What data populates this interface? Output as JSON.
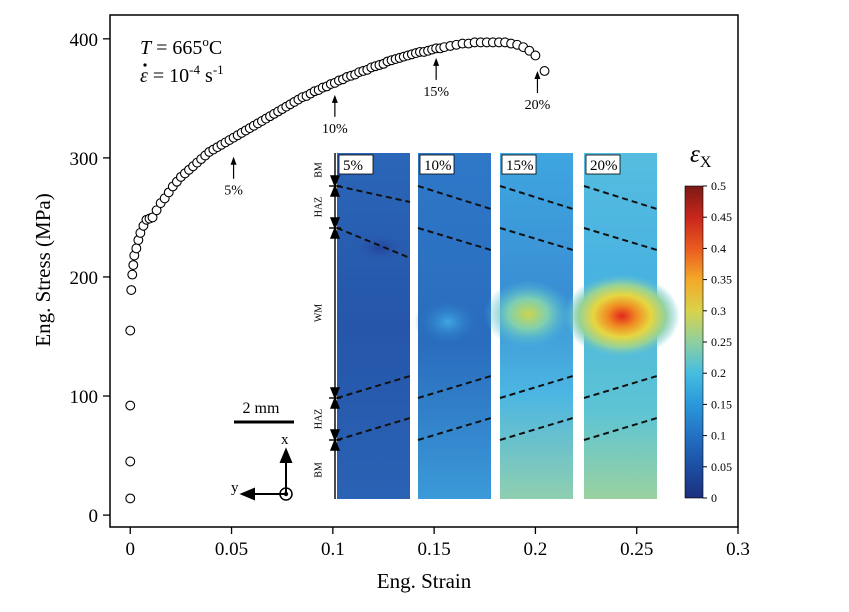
{
  "chart_data": {
    "type": "scatter",
    "xlabel": "Eng. Strain",
    "ylabel": "Eng. Stress (MPa)",
    "xlim": [
      -0.01,
      0.3
    ],
    "ylim": [
      -10,
      420
    ],
    "xticks": [
      0,
      0.05,
      0.1,
      0.15,
      0.2,
      0.25,
      0.3
    ],
    "xtick_labels": [
      "0",
      "0.05",
      "0.1",
      "0.15",
      "0.2",
      "0.25",
      "0.3"
    ],
    "yticks": [
      0,
      100,
      200,
      300,
      400
    ],
    "ytick_labels": [
      "0",
      "100",
      "200",
      "300",
      "400"
    ],
    "grid": false,
    "annotation": {
      "temp_var": "T",
      "temp_value": " = 665",
      "temp_sup": "o",
      "temp_unit": "C",
      "rate_var": "ε",
      "rate_eq": " = 10",
      "rate_sup": "-4",
      "rate_unit": " s",
      "rate_unit_sup": "-1"
    },
    "arrows": [
      {
        "label": "5%",
        "x": 0.051,
        "y": 306
      },
      {
        "label": "10%",
        "x": 0.101,
        "y": 358
      },
      {
        "label": "15%",
        "x": 0.151,
        "y": 389
      },
      {
        "label": "20%",
        "x": 0.201,
        "y": 378
      }
    ],
    "x": [
      0,
      0,
      0,
      0,
      0.0005,
      0.001,
      0.0015,
      0.002,
      0.003,
      0.004,
      0.005,
      0.0065,
      0.008,
      0.0095,
      0.011,
      0.013,
      0.015,
      0.017,
      0.019,
      0.021,
      0.023,
      0.025,
      0.027,
      0.029,
      0.031,
      0.033,
      0.035,
      0.037,
      0.039,
      0.041,
      0.043,
      0.045,
      0.047,
      0.049,
      0.051,
      0.053,
      0.055,
      0.057,
      0.059,
      0.061,
      0.063,
      0.065,
      0.067,
      0.069,
      0.071,
      0.073,
      0.075,
      0.077,
      0.079,
      0.081,
      0.083,
      0.085,
      0.087,
      0.089,
      0.091,
      0.093,
      0.095,
      0.097,
      0.099,
      0.101,
      0.103,
      0.105,
      0.107,
      0.109,
      0.111,
      0.113,
      0.115,
      0.117,
      0.119,
      0.121,
      0.123,
      0.125,
      0.127,
      0.129,
      0.131,
      0.133,
      0.135,
      0.137,
      0.139,
      0.141,
      0.143,
      0.145,
      0.147,
      0.149,
      0.151,
      0.153,
      0.155,
      0.158,
      0.161,
      0.164,
      0.167,
      0.17,
      0.173,
      0.176,
      0.179,
      0.182,
      0.185,
      0.188,
      0.191,
      0.194,
      0.197,
      0.2,
      0.2045
    ],
    "y": [
      14,
      45,
      92,
      155,
      189,
      202,
      210,
      218,
      224,
      231,
      237,
      243,
      248,
      249,
      250,
      256,
      262,
      266,
      271,
      276,
      280,
      284,
      287,
      290,
      293,
      296,
      299,
      302,
      305,
      307,
      309,
      311,
      313,
      315,
      317,
      319,
      321,
      323,
      325,
      327,
      329,
      331,
      333,
      335,
      337,
      339,
      341,
      343,
      345,
      347,
      349,
      351,
      352,
      354,
      356,
      357,
      359,
      360,
      362,
      363,
      365,
      366,
      368,
      369,
      370,
      372,
      373,
      374,
      376,
      377,
      378,
      379,
      381,
      382,
      383,
      384,
      385,
      386,
      387,
      388,
      389,
      389,
      390,
      391,
      392,
      392,
      393,
      394,
      395,
      396,
      396,
      397,
      397,
      397,
      397,
      397,
      397,
      396,
      395,
      393,
      390,
      386,
      373
    ],
    "scale_bar_label": "2 mm",
    "axis_x_label": "x",
    "axis_y_label": "y",
    "zone_labels": [
      "BM",
      "HAZ",
      "WM",
      "HAZ",
      "BM"
    ],
    "panels": [
      {
        "label": "5%",
        "strain": 0.05
      },
      {
        "label": "10%",
        "strain": 0.1
      },
      {
        "label": "15%",
        "strain": 0.15
      },
      {
        "label": "20%",
        "strain": 0.2
      }
    ],
    "colorbar": {
      "title": "ε",
      "title_sub": "X",
      "min": 0,
      "max": 0.5,
      "ticks": [
        0,
        0.05,
        0.1,
        0.15,
        0.2,
        0.25,
        0.3,
        0.35,
        0.4,
        0.45,
        0.5
      ],
      "tick_labels": [
        "0",
        "0.05",
        "0.1",
        "0.15",
        "0.2",
        "0.25",
        "0.3",
        "0.35",
        "0.4",
        "0.45",
        "0.5"
      ],
      "colors": [
        "#1d2f7e",
        "#1b4ea2",
        "#2371c4",
        "#2a98da",
        "#45bde0",
        "#8ed0a0",
        "#d9d24a",
        "#f4a828",
        "#ea5a20",
        "#c8261c",
        "#7a1a14"
      ]
    }
  }
}
